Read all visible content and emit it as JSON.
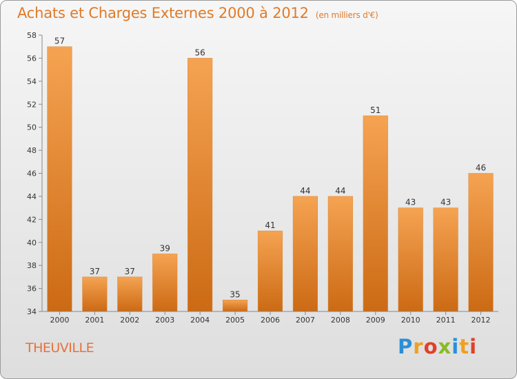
{
  "header": {
    "title": "Achats et Charges Externes 2000 à 2012",
    "subtitle": "(en milliers d'€)"
  },
  "footer": {
    "city": "THEUVILLE",
    "logo_letters": [
      {
        "char": "P",
        "color": "#2a8fd6"
      },
      {
        "char": "r",
        "color": "#f0a020"
      },
      {
        "char": "o",
        "color": "#e0402a"
      },
      {
        "char": "x",
        "color": "#88bb22"
      },
      {
        "char": "i",
        "color": "#2a8fd6"
      },
      {
        "char": "t",
        "color": "#f0a020"
      },
      {
        "char": "i",
        "color": "#e0402a"
      }
    ]
  },
  "chart_data": {
    "type": "bar",
    "title": "Achats et Charges Externes 2000 à 2012",
    "subtitle": "(en milliers d'€)",
    "categories": [
      "2000",
      "2001",
      "2002",
      "2003",
      "2004",
      "2005",
      "2006",
      "2007",
      "2008",
      "2009",
      "2010",
      "2011",
      "2012"
    ],
    "values": [
      57,
      37,
      37,
      39,
      56,
      35,
      41,
      44,
      44,
      51,
      43,
      43,
      46
    ],
    "ylim": [
      34,
      58
    ],
    "yticks": [
      34,
      36,
      38,
      40,
      42,
      44,
      46,
      48,
      50,
      52,
      54,
      56,
      58
    ],
    "xlabel": "",
    "ylabel": "",
    "grid": false,
    "bar_color_top": "#f5a352",
    "bar_color_bottom": "#cc6a14",
    "value_labels": true
  }
}
